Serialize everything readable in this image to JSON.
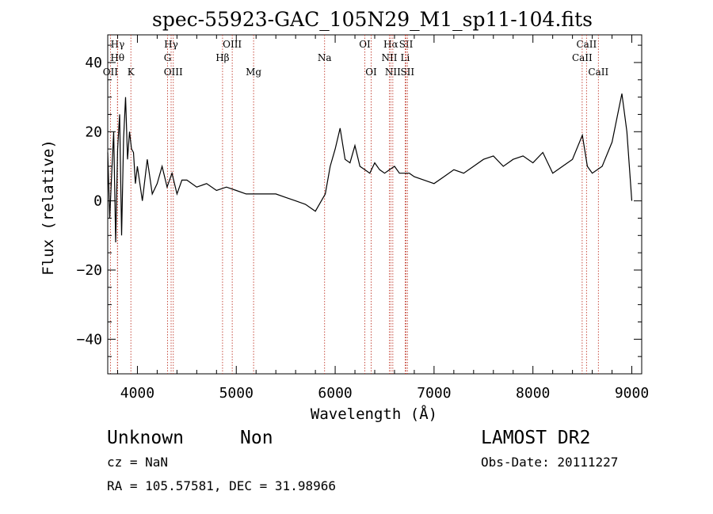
{
  "chart_data": {
    "type": "line",
    "title": "spec-55923-GAC_105N29_M1_sp11-104.fits",
    "xlabel": "Wavelength (Å)",
    "ylabel": "Flux (relative)",
    "xlim": [
      3700,
      9100
    ],
    "ylim": [
      -50,
      48
    ],
    "xticks": [
      4000,
      5000,
      6000,
      7000,
      8000,
      9000
    ],
    "yticks": [
      -40,
      -20,
      0,
      20,
      40
    ],
    "x_minor_step": 200,
    "y_minor_step": 5,
    "grid": false,
    "line_color": "#000000",
    "marker_color": "#c0392b",
    "lines": [
      {
        "label": "Hγ",
        "x": 3800,
        "row": 0
      },
      {
        "label": "Hθ",
        "x": 3798,
        "row": 1
      },
      {
        "label": "OII",
        "x": 3727,
        "row": 2
      },
      {
        "label": "K",
        "x": 3934,
        "row": 2
      },
      {
        "label": "Hγ",
        "x": 4341,
        "row": 0
      },
      {
        "label": "G",
        "x": 4305,
        "row": 1
      },
      {
        "label": "OIII",
        "x": 4363,
        "row": 2
      },
      {
        "label": "OIII",
        "x": 4959,
        "row": 0
      },
      {
        "label": "Hβ",
        "x": 4861,
        "row": 1
      },
      {
        "label": "Mg",
        "x": 5175,
        "row": 2
      },
      {
        "label": "Na",
        "x": 5893,
        "row": 1
      },
      {
        "label": "OI",
        "x": 6300,
        "row": 0
      },
      {
        "label": "OI",
        "x": 6364,
        "row": 2
      },
      {
        "label": "Hα",
        "x": 6563,
        "row": 0
      },
      {
        "label": "NII",
        "x": 6548,
        "row": 1
      },
      {
        "label": "NII",
        "x": 6583,
        "row": 2
      },
      {
        "label": "SII",
        "x": 6717,
        "row": 0
      },
      {
        "label": "Li",
        "x": 6708,
        "row": 1
      },
      {
        "label": "SII",
        "x": 6731,
        "row": 2
      },
      {
        "label": "CaII",
        "x": 8542,
        "row": 0
      },
      {
        "label": "CaII",
        "x": 8498,
        "row": 1
      },
      {
        "label": "CaII",
        "x": 8662,
        "row": 2
      }
    ],
    "series": [
      {
        "x": [
          3700,
          3720,
          3740,
          3760,
          3780,
          3800,
          3820,
          3840,
          3860,
          3880,
          3900,
          3920,
          3940,
          3960,
          3980,
          4000,
          4050,
          4100,
          4150,
          4200,
          4250,
          4300,
          4350,
          4400,
          4450,
          4500,
          4600,
          4700,
          4800,
          4900,
          5000,
          5100,
          5200,
          5300,
          5400,
          5500,
          5600,
          5700,
          5800,
          5900,
          5950,
          6000,
          6050,
          6100,
          6150,
          6200,
          6250,
          6300,
          6350,
          6400,
          6450,
          6500,
          6550,
          6600,
          6650,
          6700,
          6750,
          6800,
          6900,
          7000,
          7100,
          7200,
          7300,
          7400,
          7500,
          7600,
          7700,
          7800,
          7900,
          8000,
          8100,
          8200,
          8300,
          8400,
          8500,
          8550,
          8600,
          8700,
          8800,
          8850,
          8900,
          8950,
          9000
        ],
        "y": [
          14,
          -5,
          8,
          20,
          -12,
          15,
          25,
          -10,
          18,
          30,
          12,
          20,
          15,
          14,
          5,
          10,
          0,
          12,
          2,
          5,
          10,
          4,
          8,
          2,
          6,
          6,
          4,
          5,
          3,
          4,
          3,
          2,
          2,
          2,
          2,
          1,
          0,
          -1,
          -3,
          2,
          10,
          15,
          21,
          12,
          11,
          16,
          10,
          9,
          8,
          11,
          9,
          8,
          9,
          10,
          8,
          8,
          8,
          7,
          6,
          5,
          7,
          9,
          8,
          10,
          12,
          13,
          10,
          12,
          13,
          11,
          14,
          8,
          10,
          12,
          19,
          10,
          8,
          10,
          17,
          24,
          31,
          20,
          0
        ]
      }
    ]
  },
  "info": {
    "class": "Unknown",
    "subclass": "Non",
    "survey": "LAMOST DR2",
    "cz": "cz = NaN",
    "obs_date": "Obs-Date: 20111227",
    "coords": "RA = 105.57581, DEC =  31.98966"
  }
}
